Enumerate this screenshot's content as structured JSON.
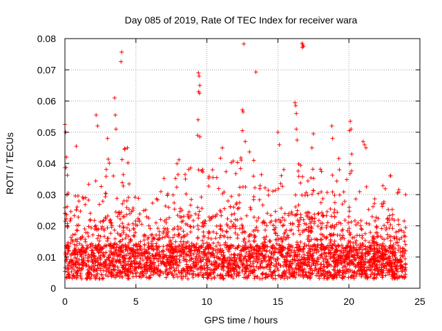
{
  "chart_data": {
    "type": "scatter",
    "title": "Day 085 of 2019, Rate Of TEC Index for receiver wara",
    "xlabel": "GPS time / hours",
    "ylabel": "ROTI / TECUs",
    "xlim": [
      0,
      25
    ],
    "ylim": [
      0,
      0.08
    ],
    "xticks": [
      0,
      5,
      10,
      15,
      20,
      25
    ],
    "xtick_labels": [
      "0",
      "5",
      "10",
      "15",
      "20",
      "25"
    ],
    "yticks": [
      0,
      0.01,
      0.02,
      0.03,
      0.04,
      0.05,
      0.06,
      0.07,
      0.08
    ],
    "ytick_labels": [
      "0",
      "0.01",
      "0.02",
      "0.03",
      "0.04",
      "0.05",
      "0.06",
      "0.07",
      "0.08"
    ],
    "grid": true,
    "marker": "+",
    "marker_color": "#ff0000",
    "data_x_range": [
      0,
      24
    ],
    "bulk_level": 0.01,
    "envelope": {
      "x": [
        0,
        0.5,
        1,
        1.5,
        2,
        2.5,
        3,
        3.5,
        4,
        4.5,
        5,
        5.5,
        6,
        6.5,
        7,
        7.5,
        8,
        8.5,
        9,
        9.5,
        10,
        10.5,
        11,
        11.5,
        12,
        12.5,
        13,
        13.5,
        14,
        14.5,
        15,
        15.5,
        16,
        16.5,
        17,
        17.5,
        18,
        18.5,
        19,
        19.5,
        20,
        20.5,
        21,
        21.5,
        22,
        22.5,
        23,
        23.5,
        24
      ],
      "upper": [
        0.038,
        0.028,
        0.03,
        0.026,
        0.033,
        0.03,
        0.036,
        0.03,
        0.042,
        0.034,
        0.024,
        0.022,
        0.02,
        0.025,
        0.028,
        0.032,
        0.036,
        0.034,
        0.038,
        0.036,
        0.032,
        0.035,
        0.038,
        0.033,
        0.036,
        0.038,
        0.036,
        0.03,
        0.032,
        0.03,
        0.033,
        0.031,
        0.037,
        0.036,
        0.034,
        0.033,
        0.035,
        0.032,
        0.038,
        0.033,
        0.036,
        0.03,
        0.029,
        0.026,
        0.024,
        0.028,
        0.031,
        0.03,
        0.032
      ]
    },
    "outliers": [
      {
        "x": 0.0,
        "y": 0.0525
      },
      {
        "x": 0.05,
        "y": 0.05
      },
      {
        "x": 0.1,
        "y": 0.042
      },
      {
        "x": 0.8,
        "y": 0.0455
      },
      {
        "x": 2.2,
        "y": 0.0555
      },
      {
        "x": 2.3,
        "y": 0.052
      },
      {
        "x": 3.0,
        "y": 0.048
      },
      {
        "x": 3.5,
        "y": 0.061
      },
      {
        "x": 3.55,
        "y": 0.0555
      },
      {
        "x": 3.6,
        "y": 0.051
      },
      {
        "x": 4.0,
        "y": 0.0757
      },
      {
        "x": 3.95,
        "y": 0.0726
      },
      {
        "x": 4.4,
        "y": 0.045
      },
      {
        "x": 4.2,
        "y": 0.0445
      },
      {
        "x": 9.4,
        "y": 0.069
      },
      {
        "x": 9.45,
        "y": 0.068
      },
      {
        "x": 9.5,
        "y": 0.065
      },
      {
        "x": 9.42,
        "y": 0.063
      },
      {
        "x": 9.48,
        "y": 0.0625
      },
      {
        "x": 9.38,
        "y": 0.054
      },
      {
        "x": 9.35,
        "y": 0.049
      },
      {
        "x": 9.5,
        "y": 0.0485
      },
      {
        "x": 12.6,
        "y": 0.0783
      },
      {
        "x": 12.5,
        "y": 0.0572
      },
      {
        "x": 12.55,
        "y": 0.0565
      },
      {
        "x": 12.5,
        "y": 0.0505
      },
      {
        "x": 12.7,
        "y": 0.047
      },
      {
        "x": 13.45,
        "y": 0.0693
      },
      {
        "x": 13.0,
        "y": 0.0437
      },
      {
        "x": 13.3,
        "y": 0.041
      },
      {
        "x": 15.0,
        "y": 0.05
      },
      {
        "x": 15.1,
        "y": 0.046
      },
      {
        "x": 16.2,
        "y": 0.0595
      },
      {
        "x": 16.25,
        "y": 0.0585
      },
      {
        "x": 16.3,
        "y": 0.056
      },
      {
        "x": 16.3,
        "y": 0.051
      },
      {
        "x": 16.35,
        "y": 0.0475
      },
      {
        "x": 16.7,
        "y": 0.0785
      },
      {
        "x": 16.75,
        "y": 0.078
      },
      {
        "x": 16.8,
        "y": 0.0775
      },
      {
        "x": 16.72,
        "y": 0.0772
      },
      {
        "x": 17.5,
        "y": 0.0495
      },
      {
        "x": 17.4,
        "y": 0.045
      },
      {
        "x": 18.8,
        "y": 0.052
      },
      {
        "x": 18.85,
        "y": 0.048
      },
      {
        "x": 20.1,
        "y": 0.0535
      },
      {
        "x": 20.15,
        "y": 0.051
      },
      {
        "x": 20.05,
        "y": 0.0505
      },
      {
        "x": 20.2,
        "y": 0.043
      },
      {
        "x": 21.0,
        "y": 0.047
      },
      {
        "x": 21.1,
        "y": 0.046
      },
      {
        "x": 21.2,
        "y": 0.045
      }
    ]
  }
}
